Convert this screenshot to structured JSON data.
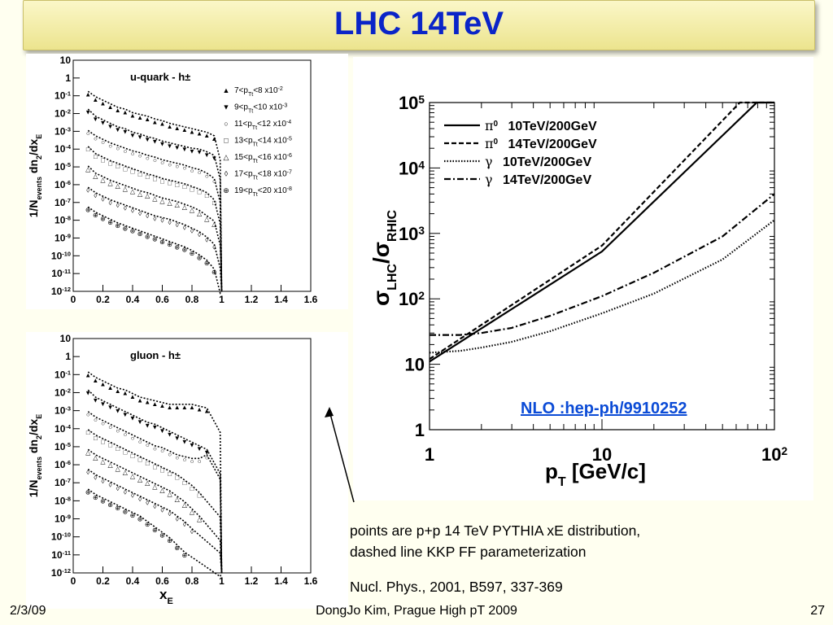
{
  "slide": {
    "title": "LHC 14TeV",
    "caption_line1": "points are p+p 14 TeV PYTHIA xE distribution,",
    "caption_line2": "dashed line KKP FF parameterization",
    "reference": "Nucl. Phys., 2001, B597, 337-369",
    "footer_date": "2/3/09",
    "footer_center": "DongJo Kim, Prague High pT 2009",
    "footer_page": "27",
    "colors": {
      "title": "#0a24c8",
      "link": "#0b4bd6",
      "title_bar": "#f4eeaa"
    }
  },
  "chart_data": [
    {
      "type": "scatter",
      "panel_label": "u-quark - h±",
      "ylabel_main": "1/N",
      "ylabel_sub": "events",
      "ylabel_tail": " dn",
      "ylabel_sub2": "2",
      "ylabel_tail2": "/dx",
      "ylabel_sub3": "E",
      "y_scale": "log",
      "ylim": [
        -12,
        1
      ],
      "xlim": [
        0,
        1.6
      ],
      "x_ticks": [
        "0",
        "0.2",
        "0.4",
        "0.6",
        "0.8",
        "1",
        "1.2",
        "1.4",
        "1.6"
      ],
      "y_ticks": [
        "10",
        "1",
        "10-1",
        "10-2",
        "10-3",
        "10-4",
        "10-5",
        "10-6",
        "10-7",
        "10-8",
        "10-9",
        "10-10",
        "10-11",
        "10-12"
      ],
      "legend": [
        {
          "marker": "▲",
          "label": "7<pTt<8  x10-2"
        },
        {
          "marker": "▼",
          "label": "9<pTt<10  x10-3"
        },
        {
          "marker": "○",
          "label": "11<pTt<12  x10-4"
        },
        {
          "marker": "□",
          "label": "13<pTt<14  x10-5"
        },
        {
          "marker": "△",
          "label": "15<pTt<16  x10-6"
        },
        {
          "marker": "◊",
          "label": "17<pTt<18  x10-7"
        },
        {
          "marker": "⊕",
          "label": "19<pTt<20  x10-8"
        }
      ],
      "series": [
        {
          "offset": -0.9,
          "x": [
            0.1,
            0.15,
            0.2,
            0.25,
            0.3,
            0.35,
            0.4,
            0.45,
            0.5,
            0.55,
            0.6,
            0.65,
            0.7,
            0.75,
            0.8,
            0.85,
            0.9,
            0.95
          ],
          "y": [
            -0.9,
            -1.2,
            -1.4,
            -1.6,
            -1.8,
            -1.9,
            -2.1,
            -2.2,
            -2.3,
            -2.45,
            -2.55,
            -2.7,
            -2.8,
            -2.9,
            -3.0,
            -3.1,
            -3.2,
            -3.4
          ]
        },
        {
          "offset": -1.9,
          "x": [
            0.1,
            0.15,
            0.2,
            0.25,
            0.3,
            0.35,
            0.4,
            0.45,
            0.5,
            0.55,
            0.6,
            0.65,
            0.7,
            0.75,
            0.8,
            0.85,
            0.9,
            0.95
          ],
          "y": [
            -1.9,
            -2.3,
            -2.5,
            -2.7,
            -2.9,
            -3.0,
            -3.2,
            -3.3,
            -3.45,
            -3.55,
            -3.7,
            -3.8,
            -3.9,
            -4.0,
            -4.1,
            -4.15,
            -4.3,
            -4.5
          ]
        },
        {
          "offset": -3.1,
          "x": [
            0.1,
            0.15,
            0.2,
            0.25,
            0.3,
            0.35,
            0.4,
            0.45,
            0.5,
            0.55,
            0.6,
            0.65,
            0.7,
            0.75,
            0.8,
            0.85,
            0.9,
            0.95
          ],
          "y": [
            -3.1,
            -3.4,
            -3.6,
            -3.8,
            -3.95,
            -4.1,
            -4.25,
            -4.35,
            -4.5,
            -4.6,
            -4.75,
            -4.85,
            -4.95,
            -5.05,
            -5.2,
            -5.3,
            -5.5,
            -5.8
          ]
        },
        {
          "offset": -4.0,
          "x": [
            0.1,
            0.15,
            0.2,
            0.25,
            0.3,
            0.35,
            0.4,
            0.45,
            0.5,
            0.55,
            0.6,
            0.65,
            0.7,
            0.75,
            0.8,
            0.85,
            0.9,
            0.95
          ],
          "y": [
            -4.0,
            -4.4,
            -4.6,
            -4.8,
            -4.95,
            -5.1,
            -5.25,
            -5.4,
            -5.55,
            -5.65,
            -5.8,
            -5.9,
            -6.0,
            -6.1,
            -6.25,
            -6.4,
            -6.6,
            -7.0
          ]
        },
        {
          "offset": -5.1,
          "x": [
            0.1,
            0.15,
            0.2,
            0.25,
            0.3,
            0.35,
            0.4,
            0.45,
            0.5,
            0.55,
            0.6,
            0.65,
            0.7,
            0.75,
            0.8,
            0.85,
            0.9,
            0.95
          ],
          "y": [
            -5.1,
            -5.5,
            -5.7,
            -5.9,
            -6.05,
            -6.2,
            -6.35,
            -6.5,
            -6.6,
            -6.75,
            -6.9,
            -7.0,
            -7.1,
            -7.25,
            -7.4,
            -7.6,
            -7.9,
            -8.2
          ]
        },
        {
          "offset": -6.3,
          "x": [
            0.1,
            0.15,
            0.2,
            0.25,
            0.3,
            0.35,
            0.4,
            0.45,
            0.5,
            0.55,
            0.6,
            0.65,
            0.7,
            0.75,
            0.8,
            0.85,
            0.9,
            0.95
          ],
          "y": [
            -6.3,
            -6.6,
            -6.8,
            -7.0,
            -7.15,
            -7.3,
            -7.45,
            -7.6,
            -7.75,
            -7.9,
            -8.0,
            -8.1,
            -8.25,
            -8.4,
            -8.6,
            -8.8,
            -9.1,
            -9.5
          ]
        },
        {
          "offset": -7.4,
          "x": [
            0.1,
            0.15,
            0.2,
            0.25,
            0.3,
            0.35,
            0.4,
            0.45,
            0.5,
            0.55,
            0.6,
            0.65,
            0.7,
            0.75,
            0.8,
            0.85,
            0.9,
            0.95
          ],
          "y": [
            -7.4,
            -7.7,
            -7.9,
            -8.1,
            -8.3,
            -8.45,
            -8.6,
            -8.75,
            -8.9,
            -9.05,
            -9.2,
            -9.35,
            -9.5,
            -9.65,
            -9.85,
            -10.1,
            -10.4,
            -10.9
          ]
        }
      ]
    },
    {
      "type": "scatter",
      "panel_label": "gluon - h±",
      "xlabel": "xE",
      "y_scale": "log",
      "ylim": [
        -12,
        1
      ],
      "xlim": [
        0,
        1.6
      ],
      "x_ticks": [
        "0",
        "0.2",
        "0.4",
        "0.6",
        "0.8",
        "1",
        "1.2",
        "1.4",
        "1.6"
      ],
      "y_ticks": [
        "10",
        "1",
        "10-1",
        "10-2",
        "10-3",
        "10-4",
        "10-5",
        "10-6",
        "10-7",
        "10-8",
        "10-9",
        "10-10",
        "10-11",
        "10-12"
      ],
      "series": [
        {
          "x": [
            0.1,
            0.15,
            0.2,
            0.25,
            0.3,
            0.35,
            0.4,
            0.45,
            0.5,
            0.55,
            0.6,
            0.65,
            0.7,
            0.75,
            0.8,
            0.85,
            0.9
          ],
          "y": [
            -1.0,
            -1.3,
            -1.5,
            -1.7,
            -1.9,
            -2.0,
            -2.2,
            -2.4,
            -2.5,
            -2.6,
            -2.7,
            -2.8,
            -2.8,
            -2.8,
            -2.8,
            -2.9,
            -3.0
          ]
        },
        {
          "x": [
            0.1,
            0.15,
            0.2,
            0.25,
            0.3,
            0.35,
            0.4,
            0.45,
            0.5,
            0.55,
            0.6,
            0.65,
            0.7,
            0.75,
            0.8,
            0.85,
            0.9
          ],
          "y": [
            -2.0,
            -2.4,
            -2.6,
            -2.8,
            -3.0,
            -3.2,
            -3.4,
            -3.6,
            -3.8,
            -3.9,
            -4.1,
            -4.3,
            -4.5,
            -4.7,
            -4.9,
            -5.1,
            -5.3
          ]
        },
        {
          "x": [
            0.1,
            0.15,
            0.2,
            0.25,
            0.3,
            0.35,
            0.4,
            0.45,
            0.5,
            0.55,
            0.6,
            0.65,
            0.7,
            0.75,
            0.8,
            0.85,
            0.9
          ],
          "y": [
            -3.2,
            -3.5,
            -3.7,
            -3.9,
            -4.1,
            -4.3,
            -4.5,
            -4.7,
            -4.9,
            -5.1,
            -5.2,
            -5.4,
            -5.6,
            -5.7,
            -5.8,
            -5.8,
            -5.6
          ]
        },
        {
          "x": [
            0.1,
            0.15,
            0.2,
            0.25,
            0.3,
            0.35,
            0.4,
            0.45,
            0.5,
            0.55,
            0.6,
            0.65,
            0.7,
            0.75,
            0.8,
            0.85
          ],
          "y": [
            -4.2,
            -4.5,
            -4.7,
            -4.9,
            -5.1,
            -5.3,
            -5.5,
            -5.7,
            -5.9,
            -6.1,
            -6.3,
            -6.5,
            -6.7,
            -7.0,
            -7.3,
            -7.7
          ]
        },
        {
          "x": [
            0.1,
            0.15,
            0.2,
            0.25,
            0.3,
            0.35,
            0.4,
            0.45,
            0.5,
            0.55,
            0.6,
            0.65,
            0.7,
            0.75,
            0.8,
            0.85
          ],
          "y": [
            -5.3,
            -5.6,
            -5.8,
            -6.0,
            -6.2,
            -6.4,
            -6.6,
            -6.8,
            -7.0,
            -7.2,
            -7.4,
            -7.6,
            -7.9,
            -8.2,
            -8.6,
            -9.0
          ]
        },
        {
          "x": [
            0.1,
            0.15,
            0.2,
            0.25,
            0.3,
            0.35,
            0.4,
            0.45,
            0.5,
            0.55,
            0.6,
            0.65,
            0.7,
            0.75,
            0.8
          ],
          "y": [
            -6.4,
            -6.7,
            -6.9,
            -7.1,
            -7.3,
            -7.5,
            -7.7,
            -7.9,
            -8.1,
            -8.3,
            -8.5,
            -8.7,
            -9.0,
            -9.3,
            -9.7
          ]
        },
        {
          "x": [
            0.1,
            0.15,
            0.2,
            0.25,
            0.3,
            0.35,
            0.4,
            0.45,
            0.5,
            0.55,
            0.6,
            0.65,
            0.7,
            0.75
          ],
          "y": [
            -7.5,
            -7.8,
            -8.0,
            -8.2,
            -8.4,
            -8.6,
            -8.8,
            -9.0,
            -9.3,
            -9.6,
            -9.9,
            -10.2,
            -10.6,
            -11.0
          ]
        }
      ]
    },
    {
      "type": "line",
      "ylabel": "σLHC/σRHIC",
      "xlabel": "pT [GeV/c]",
      "x_scale": "log",
      "y_scale": "log",
      "xlim": [
        1,
        100
      ],
      "ylim": [
        1,
        100000
      ],
      "x_ticks": [
        "1",
        "10",
        "102"
      ],
      "y_ticks": [
        "1",
        "10",
        "102",
        "103",
        "104",
        "105"
      ],
      "annotation": "NLO :hep-ph/9910252",
      "series": [
        {
          "name": "π0 10TeV/200GeV",
          "style": "solid",
          "x": [
            1,
            10,
            79,
            100
          ],
          "y": [
            11,
            530,
            100000,
            100000
          ]
        },
        {
          "name": "π0 14TeV/200GeV",
          "style": "dashed",
          "x": [
            1,
            10,
            63,
            100
          ],
          "y": [
            12,
            650,
            100000,
            100000
          ]
        },
        {
          "name": "γ 10TeV/200GeV",
          "style": "dotted",
          "x": [
            1,
            1.5,
            2,
            3,
            5,
            10,
            20,
            50,
            100
          ],
          "y": [
            15,
            16,
            18,
            22,
            32,
            60,
            120,
            400,
            1600
          ]
        },
        {
          "name": "γ 14TeV/200GeV",
          "style": "dashdot",
          "x": [
            1,
            1.5,
            2,
            3,
            5,
            10,
            20,
            50,
            100
          ],
          "y": [
            28,
            28,
            30,
            36,
            55,
            110,
            250,
            900,
            4000
          ]
        }
      ]
    }
  ]
}
